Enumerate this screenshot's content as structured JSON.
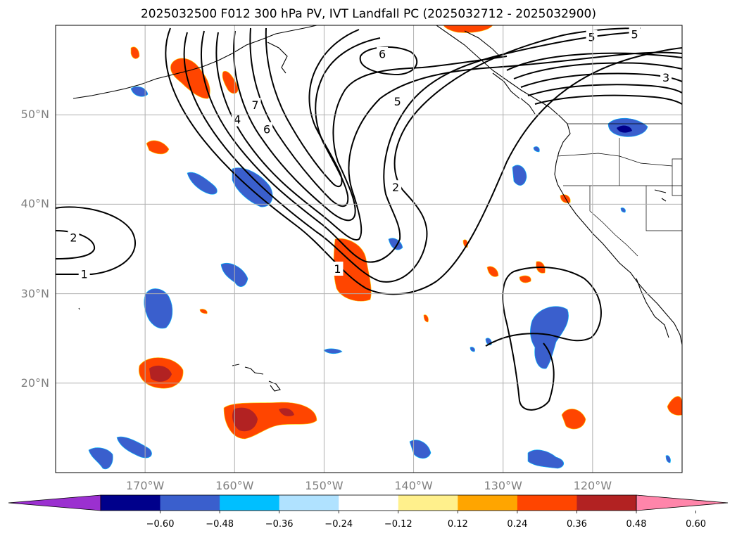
{
  "title": "2025032500 F012 300 hPa PV, IVT Landfall PC (2025032712 - 2025032900)",
  "map": {
    "lon_range": [
      -180,
      -110
    ],
    "lat_range": [
      10,
      60
    ],
    "lat_ticks": [
      {
        "value": 20,
        "label": "20°N"
      },
      {
        "value": 30,
        "label": "30°N"
      },
      {
        "value": 40,
        "label": "40°N"
      },
      {
        "value": 50,
        "label": "50°N"
      }
    ],
    "lon_ticks": [
      {
        "value": -170,
        "label": "170°W"
      },
      {
        "value": -160,
        "label": "160°W"
      },
      {
        "value": -150,
        "label": "150°W"
      },
      {
        "value": -140,
        "label": "140°W"
      },
      {
        "value": -130,
        "label": "130°W"
      },
      {
        "value": -120,
        "label": "120°W"
      }
    ],
    "grid": true,
    "contour_labels": [
      {
        "text": "6",
        "lon": -143.5,
        "lat": 56.8
      },
      {
        "text": "5",
        "lon": -141.8,
        "lat": 51.5
      },
      {
        "text": "5",
        "lon": -120.1,
        "lat": 58.7
      },
      {
        "text": "5",
        "lon": -115.3,
        "lat": 59.0
      },
      {
        "text": "3",
        "lon": -111.8,
        "lat": 54.2
      },
      {
        "text": "7",
        "lon": -157.7,
        "lat": 51.1
      },
      {
        "text": "6",
        "lon": -156.4,
        "lat": 48.4
      },
      {
        "text": "4",
        "lon": -159.7,
        "lat": 49.5
      },
      {
        "text": "2",
        "lon": -142.0,
        "lat": 41.9
      },
      {
        "text": "2",
        "lon": -178.0,
        "lat": 36.3
      },
      {
        "text": "1",
        "lon": -176.8,
        "lat": 32.2
      },
      {
        "text": "1",
        "lon": -148.5,
        "lat": 32.8
      }
    ]
  },
  "colorbar": {
    "colors": [
      "#9b30d0",
      "#00008b",
      "#3a5fcd",
      "#00bfff",
      "#b0e2ff",
      "#ffffff",
      "#fff08c",
      "#ffa500",
      "#ff4500",
      "#b22222",
      "#ff85aa"
    ],
    "labels": [
      "−0.60",
      "−0.48",
      "−0.36",
      "−0.24",
      "−0.12",
      "0.12",
      "0.24",
      "0.36",
      "0.48",
      "0.60"
    ]
  }
}
